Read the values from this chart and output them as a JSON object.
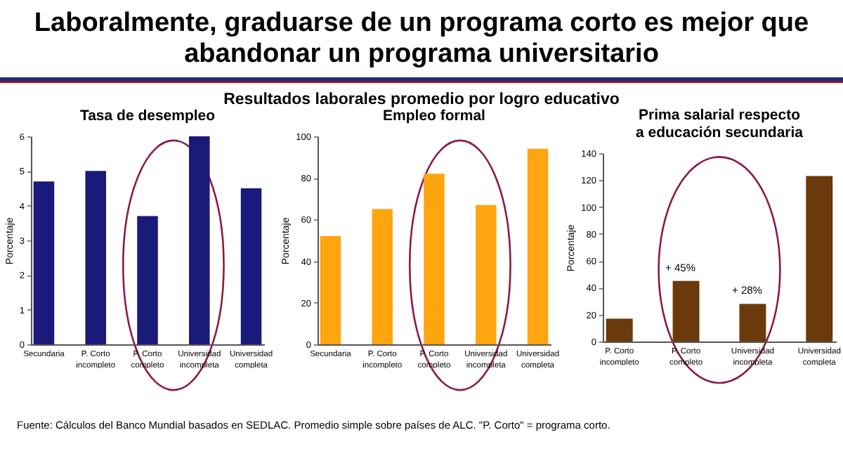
{
  "chart_data": [
    {
      "type": "other",
      "title": "Laboralmente, graduarse de un programa corto es mejor que abandonar un programa universitario",
      "subtitle": "Resultados laborales promedio por logro educativo",
      "annotations": [
        "Fuente: Cálculos del Banco Mundial basados en SEDLAC. Promedio simple sobre países de ALC. \"P. Corto\" = programa corto."
      ]
    },
    {
      "type": "bar",
      "title": "Tasa de desempleo",
      "ylabel": "Porcentaje",
      "categories": [
        "Secundaria",
        "P. Corto incompleto",
        "P. Corto completo",
        "Universidad incompleta",
        "Universidad completa"
      ],
      "values": [
        4.7,
        5.0,
        3.7,
        6.0,
        4.5
      ],
      "color": "#1a1a7a",
      "ylim": [
        0,
        6
      ],
      "yticks": [
        0,
        1,
        2,
        3,
        4,
        5,
        6
      ]
    },
    {
      "type": "bar",
      "title": "Empleo formal",
      "ylabel": "Porcentaje",
      "categories": [
        "Secundaria",
        "P. Corto incompleto",
        "P. Corto completo",
        "Universidad incompleta",
        "Universidad completa"
      ],
      "values": [
        52,
        65,
        82,
        67,
        94
      ],
      "color": "#ffa510",
      "ylim": [
        0,
        100
      ],
      "yticks": [
        0,
        20,
        40,
        60,
        80,
        100
      ]
    },
    {
      "type": "bar",
      "title": "Prima salarial respecto a educación secundaria",
      "ylabel": "Porcentaje",
      "categories": [
        "P. Corto incompleto",
        "P. Corto completo",
        "Universidad incompleta",
        "Universidad completa"
      ],
      "values": [
        17,
        45,
        28,
        123
      ],
      "color": "#6b3a0c",
      "ylim": [
        0,
        140
      ],
      "yticks": [
        0,
        20,
        40,
        60,
        80,
        100,
        120,
        140
      ],
      "annotations": [
        {
          "text": "+ 45%",
          "x": "P. Corto completo",
          "y": 45
        },
        {
          "text": "+ 28%",
          "x": "Universidad incompleta",
          "y": 28
        }
      ]
    }
  ]
}
